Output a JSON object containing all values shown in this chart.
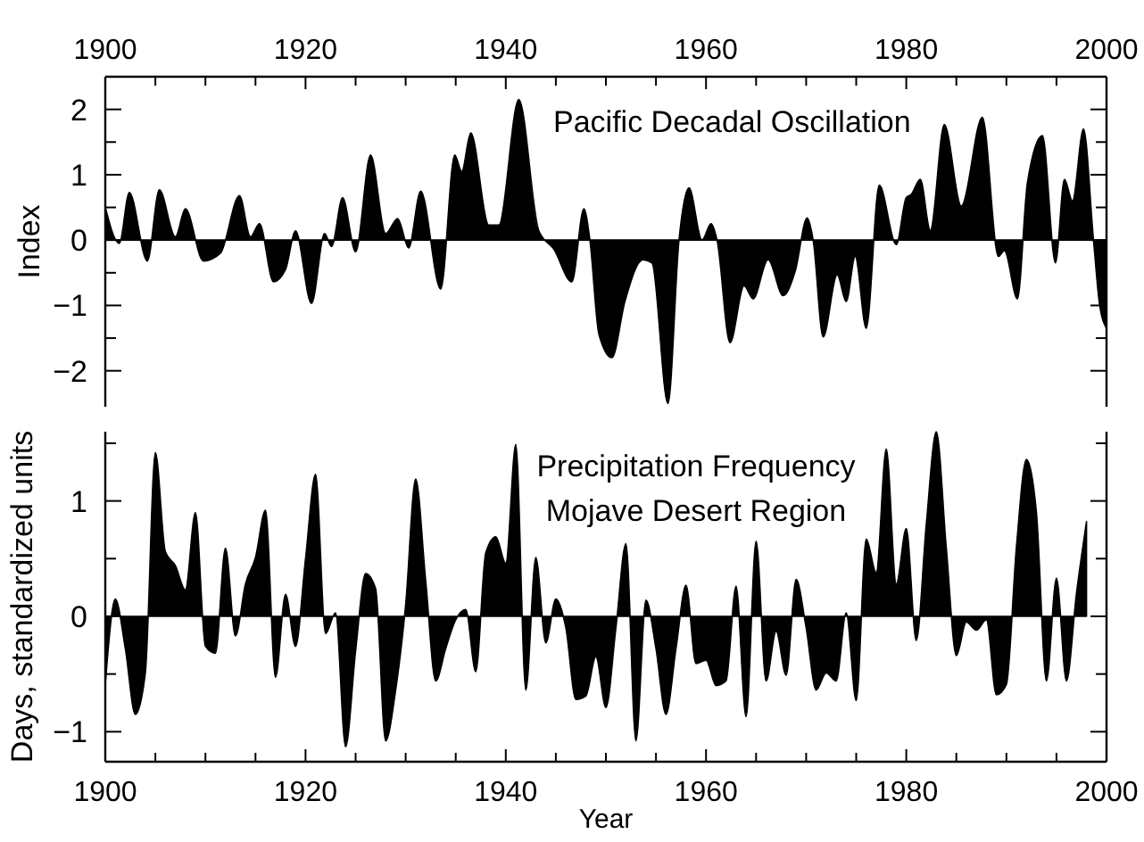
{
  "chart_data": [
    {
      "type": "area",
      "ylabel": "Index",
      "annotations": [
        "Pacific Decadal Oscillation"
      ],
      "xlim": [
        1900,
        2000
      ],
      "xticks": [
        1900,
        {
          "value": 1905,
          "label": null
        },
        {
          "value": 1910,
          "label": null
        },
        {
          "value": 1915,
          "label": null
        },
        1920,
        {
          "value": 1925,
          "label": null
        },
        {
          "value": 1930,
          "label": null
        },
        {
          "value": 1935,
          "label": null
        },
        1940,
        {
          "value": 1945,
          "label": null
        },
        {
          "value": 1950,
          "label": null
        },
        {
          "value": 1955,
          "label": null
        },
        1960,
        {
          "value": 1965,
          "label": null
        },
        {
          "value": 1970,
          "label": null
        },
        {
          "value": 1975,
          "label": null
        },
        1980,
        {
          "value": 1985,
          "label": null
        },
        {
          "value": 1990,
          "label": null
        },
        {
          "value": 1995,
          "label": null
        },
        2000
      ],
      "ylim": [
        -2.55,
        2.5
      ],
      "yticks": [
        -2,
        {
          "value": -1.5,
          "label": null
        },
        -1,
        {
          "value": -0.5,
          "label": null
        },
        0,
        {
          "value": 0.5,
          "label": null
        },
        1,
        {
          "value": 1.5,
          "label": null
        },
        2
      ],
      "x": [
        1900,
        1901.4,
        1902.4,
        1904.2,
        1905.4,
        1907,
        1908,
        1909.8,
        1911.5,
        1913.4,
        1914.5,
        1915.4,
        1916.8,
        1918,
        1919,
        1920.6,
        1921.9,
        1922.6,
        1923.7,
        1925,
        1926.5,
        1928,
        1929.2,
        1930.3,
        1931.5,
        1933.5,
        1934.9,
        1935.6,
        1936.5,
        1938.3,
        1939.3,
        1941.3,
        1943.3,
        1944.8,
        1946.6,
        1947.8,
        1948.4,
        1949.3,
        1950.6,
        1951.9,
        1953.7,
        1954.6,
        1956.2,
        1957.3,
        1958.3,
        1959.6,
        1960.5,
        1961.1,
        1962.4,
        1963.8,
        1964.7,
        1966.2,
        1967.7,
        1968.9,
        1970.1,
        1970.7,
        1971.7,
        1973.1,
        1974,
        1974.9,
        1976,
        1977.3,
        1979,
        1980,
        1980.5,
        1981.4,
        1982.4,
        1983.8,
        1985.5,
        1987.6,
        1989.2,
        1989.8,
        1991.1,
        1992.1,
        1993.6,
        1994.9,
        1995.8,
        1996.6,
        1997.7,
        1998.7,
        1999.3,
        2000
      ],
      "series": [
        {
          "color": "#000000",
          "values": [
            0.5,
            -0.05,
            0.73,
            -0.32,
            0.77,
            0.05,
            0.48,
            -0.32,
            -0.2,
            0.68,
            0.05,
            0.25,
            -0.64,
            -0.45,
            0.14,
            -0.97,
            0.1,
            -0.1,
            0.65,
            -0.18,
            1.3,
            0.1,
            0.33,
            -0.12,
            0.75,
            -0.75,
            1.3,
            1.05,
            1.64,
            0.23,
            0.23,
            2.15,
            0.14,
            -0.14,
            -0.64,
            0.48,
            0,
            -1.44,
            -1.8,
            -0.94,
            -0.3,
            -0.35,
            -2.5,
            0,
            0.8,
            0,
            0.25,
            0,
            -1.57,
            -0.7,
            -0.9,
            -0.3,
            -0.85,
            -0.48,
            0.34,
            0,
            -1.48,
            -0.53,
            -0.94,
            -0.25,
            -1.35,
            0.84,
            -0.07,
            0.65,
            0.7,
            0.93,
            0.15,
            1.77,
            0.52,
            1.88,
            -0.25,
            -0.16,
            -0.9,
            0.88,
            1.6,
            -0.35,
            0.93,
            0.6,
            1.7,
            0,
            -0.98,
            -1.35
          ]
        }
      ]
    },
    {
      "type": "area",
      "xlabel": "Year",
      "ylabel": "Days, standardized units",
      "annotations": [
        "Precipitation Frequency",
        "Mojave Desert Region"
      ],
      "xlim": [
        1900,
        2000
      ],
      "xticks": [
        1900,
        {
          "value": 1905,
          "label": null
        },
        {
          "value": 1910,
          "label": null
        },
        {
          "value": 1915,
          "label": null
        },
        1920,
        {
          "value": 1925,
          "label": null
        },
        {
          "value": 1930,
          "label": null
        },
        {
          "value": 1935,
          "label": null
        },
        1940,
        {
          "value": 1945,
          "label": null
        },
        {
          "value": 1950,
          "label": null
        },
        {
          "value": 1955,
          "label": null
        },
        1960,
        {
          "value": 1965,
          "label": null
        },
        {
          "value": 1970,
          "label": null
        },
        {
          "value": 1975,
          "label": null
        },
        1980,
        {
          "value": 1985,
          "label": null
        },
        {
          "value": 1990,
          "label": null
        },
        {
          "value": 1995,
          "label": null
        },
        2000
      ],
      "ylim": [
        -1.26,
        1.6
      ],
      "yticks": [
        -1,
        {
          "value": -0.5,
          "label": null
        },
        0,
        {
          "value": 0.5,
          "label": null
        },
        1,
        {
          "value": 1.5,
          "label": null
        }
      ],
      "x": [
        1900,
        1901,
        1902,
        1903,
        1904,
        1905,
        1906,
        1907,
        1908,
        1909,
        1910,
        1911,
        1912,
        1913,
        1914,
        1915,
        1916,
        1917,
        1918,
        1919,
        1920,
        1921,
        1922,
        1923,
        1924,
        1925,
        1926,
        1927,
        1928,
        1929,
        1930,
        1931,
        1932,
        1933,
        1934,
        1935,
        1936,
        1937,
        1938,
        1939,
        1940,
        1941,
        1942,
        1943,
        1944,
        1945,
        1946,
        1947,
        1948,
        1949,
        1950,
        1951,
        1952,
        1953,
        1954,
        1955,
        1956,
        1957,
        1958,
        1959,
        1960,
        1961,
        1962,
        1963,
        1964,
        1965,
        1966,
        1967,
        1968,
        1969,
        1970,
        1971,
        1972,
        1973,
        1974,
        1975,
        1976,
        1977,
        1978,
        1979,
        1980,
        1981,
        1982,
        1983,
        1984,
        1985,
        1986,
        1987,
        1988,
        1989,
        1990,
        1991,
        1992,
        1993,
        1994,
        1995,
        1996,
        1997,
        1998
      ],
      "series": [
        {
          "color": "#000000",
          "values": [
            -0.59,
            0.15,
            -0.28,
            -0.85,
            -0.49,
            1.42,
            0.56,
            0.44,
            0.23,
            0.9,
            -0.26,
            -0.32,
            0.59,
            -0.17,
            0.28,
            0.51,
            0.92,
            -0.53,
            0.19,
            -0.26,
            0.5,
            1.23,
            -0.15,
            0.03,
            -1.13,
            -0.3,
            0.37,
            0.24,
            -1.08,
            -0.64,
            0.1,
            1.19,
            0.31,
            -0.56,
            -0.28,
            -0.03,
            0.06,
            -0.48,
            0.55,
            0.69,
            0.46,
            1.49,
            -0.64,
            0.51,
            -0.23,
            0.15,
            -0.1,
            -0.72,
            -0.69,
            -0.35,
            -0.79,
            -0.1,
            0.63,
            -1.08,
            0.14,
            -0.28,
            -0.85,
            -0.28,
            0.27,
            -0.41,
            -0.38,
            -0.6,
            -0.56,
            0.26,
            -0.87,
            0.65,
            -0.56,
            -0.13,
            -0.51,
            0.32,
            -0.1,
            -0.64,
            -0.49,
            -0.56,
            0.03,
            -0.73,
            0.67,
            0.38,
            1.45,
            0.28,
            0.76,
            -0.21,
            0.8,
            1.6,
            0.59,
            -0.34,
            -0.05,
            -0.12,
            -0.03,
            -0.68,
            -0.59,
            0.6,
            1.36,
            0.9,
            -0.56,
            0.33,
            -0.56,
            0.2,
            0.82
          ]
        }
      ]
    }
  ]
}
